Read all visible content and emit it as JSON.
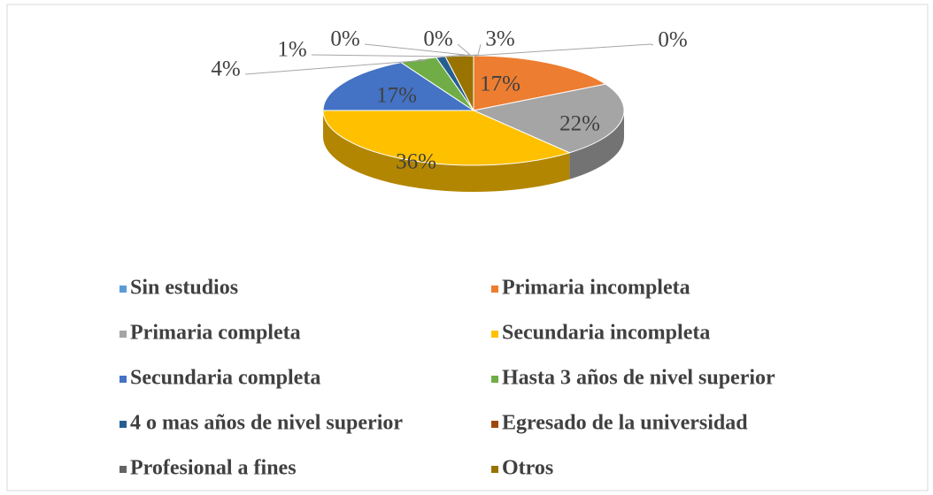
{
  "chart_data": {
    "type": "pie",
    "categories": [
      "Sin estudios",
      "Primaria incompleta",
      "Primaria completa",
      "Secundaria incompleta",
      "Secundaria completa",
      "Hasta 3 años de nivel superior",
      "4 o mas años de nivel superior",
      "Egresado de la universidad",
      "Profesional a fines",
      "Otros"
    ],
    "values": [
      0,
      17,
      22,
      36,
      17,
      4,
      1,
      0,
      0,
      3
    ],
    "value_labels": [
      "0%",
      "17%",
      "22%",
      "36%",
      "17%",
      "4%",
      "1%",
      "0%",
      "0%",
      "3%"
    ],
    "colors": [
      "#5b9bd5",
      "#ed7d31",
      "#a5a5a5",
      "#ffc000",
      "#4472c4",
      "#70ad47",
      "#255e91",
      "#9e480e",
      "#636363",
      "#997300"
    ],
    "legend": "bottom"
  }
}
